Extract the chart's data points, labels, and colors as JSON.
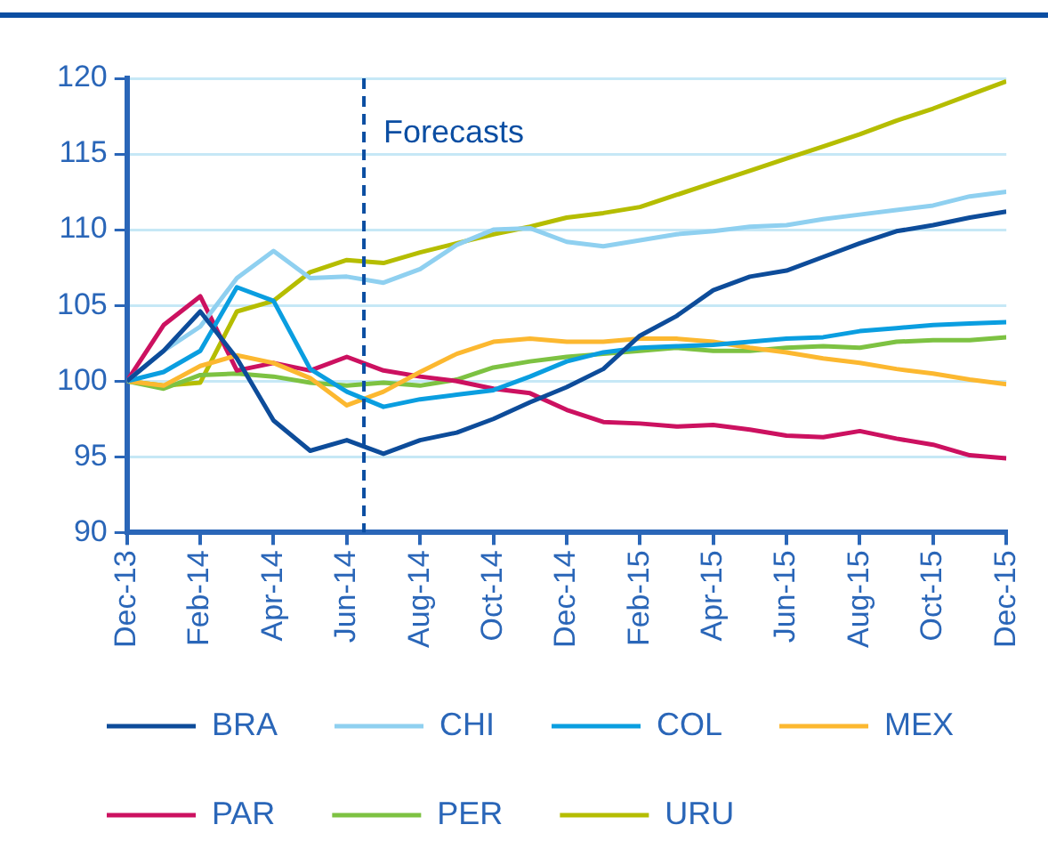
{
  "chart_data": {
    "type": "line",
    "x": [
      "2013-12",
      "2014-01",
      "2014-02",
      "2014-03",
      "2014-04",
      "2014-05",
      "2014-06",
      "2014-07",
      "2014-08",
      "2014-09",
      "2014-10",
      "2014-11",
      "2014-12",
      "2015-01",
      "2015-02",
      "2015-03",
      "2015-04",
      "2015-05",
      "2015-06",
      "2015-07",
      "2015-08",
      "2015-09",
      "2015-10",
      "2015-11",
      "2015-12"
    ],
    "series": [
      {
        "name": "BRA",
        "color": "#0d4c9a",
        "values": [
          100,
          102.0,
          104.6,
          101.5,
          97.4,
          95.4,
          96.1,
          95.2,
          96.1,
          96.6,
          97.5,
          98.6,
          99.6,
          100.8,
          103.0,
          104.3,
          106.0,
          106.9,
          107.3,
          108.2,
          109.1,
          109.9,
          110.3,
          110.8,
          111.2
        ]
      },
      {
        "name": "CHI",
        "color": "#8fd0f0",
        "values": [
          100,
          102.0,
          103.6,
          106.8,
          108.6,
          106.8,
          106.9,
          106.5,
          107.4,
          109.0,
          110.0,
          110.1,
          109.2,
          108.9,
          109.3,
          109.7,
          109.9,
          110.2,
          110.3,
          110.7,
          111.0,
          111.3,
          111.6,
          112.2,
          112.5
        ]
      },
      {
        "name": "COL",
        "color": "#0a9ee0",
        "values": [
          100,
          100.6,
          102.0,
          106.2,
          105.3,
          100.8,
          99.3,
          98.3,
          98.8,
          99.1,
          99.4,
          100.3,
          101.3,
          101.9,
          102.2,
          102.3,
          102.4,
          102.6,
          102.8,
          102.9,
          103.3,
          103.5,
          103.7,
          103.8,
          103.9
        ]
      },
      {
        "name": "MEX",
        "color": "#fcb830",
        "values": [
          100,
          99.7,
          101.0,
          101.7,
          101.2,
          100.2,
          98.4,
          99.3,
          100.6,
          101.8,
          102.6,
          102.8,
          102.6,
          102.6,
          102.8,
          102.8,
          102.6,
          102.2,
          101.9,
          101.5,
          101.2,
          100.8,
          100.5,
          100.1,
          99.8
        ]
      },
      {
        "name": "PAR",
        "color": "#cc1160",
        "values": [
          100,
          103.7,
          105.6,
          100.7,
          101.2,
          100.7,
          101.6,
          100.7,
          100.3,
          100.0,
          99.5,
          99.2,
          98.1,
          97.3,
          97.2,
          97.0,
          97.1,
          96.8,
          96.4,
          96.3,
          96.7,
          96.2,
          95.8,
          95.1,
          94.9
        ]
      },
      {
        "name": "PER",
        "color": "#7dc242",
        "values": [
          100,
          99.5,
          100.4,
          100.5,
          100.3,
          99.9,
          99.7,
          99.9,
          99.7,
          100.1,
          100.9,
          101.3,
          101.6,
          101.8,
          102.0,
          102.2,
          102.0,
          102.0,
          102.2,
          102.3,
          102.2,
          102.6,
          102.7,
          102.7,
          102.9
        ]
      },
      {
        "name": "URU",
        "color": "#b5bd00",
        "values": [
          100,
          99.7,
          99.9,
          104.6,
          105.3,
          107.2,
          108.0,
          107.8,
          108.5,
          109.1,
          109.7,
          110.2,
          110.8,
          111.1,
          111.5,
          112.3,
          113.1,
          113.9,
          114.7,
          115.5,
          116.3,
          117.2,
          118.0,
          118.9,
          119.8
        ]
      }
    ],
    "xlim": [
      "2013-12",
      "2015-12"
    ],
    "xticks": [
      {
        "value": "2013-12",
        "label": "Dec-13"
      },
      {
        "value": "2014-02",
        "label": "Feb-14"
      },
      {
        "value": "2014-04",
        "label": "Apr-14"
      },
      {
        "value": "2014-06",
        "label": "Jun-14"
      },
      {
        "value": "2014-08",
        "label": "Aug-14"
      },
      {
        "value": "2014-10",
        "label": "Oct-14"
      },
      {
        "value": "2014-12",
        "label": "Dec-14"
      },
      {
        "value": "2015-02",
        "label": "Feb-15"
      },
      {
        "value": "2015-04",
        "label": "Apr-15"
      },
      {
        "value": "2015-06",
        "label": "Jun-15"
      },
      {
        "value": "2015-08",
        "label": "Aug-15"
      },
      {
        "value": "2015-10",
        "label": "Oct-15"
      },
      {
        "value": "2015-12",
        "label": "Dec-15"
      }
    ],
    "ylim": [
      90,
      120
    ],
    "yticks": [
      90,
      95,
      100,
      105,
      110,
      115,
      120
    ],
    "ref_lines": [
      {
        "axis": "x",
        "value": "2014-06-15",
        "label": "Forecasts",
        "color": "#0b4ea2",
        "line_style": "dashed"
      }
    ],
    "grid": "y",
    "legend": "bottom",
    "marker": "none",
    "line_style": "solid"
  }
}
